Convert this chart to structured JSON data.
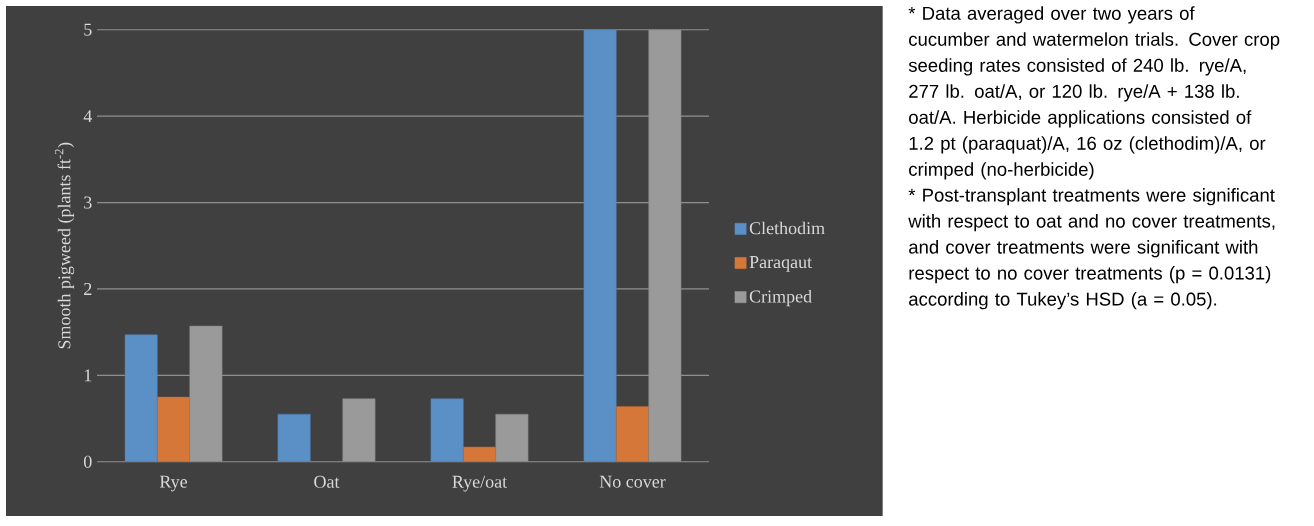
{
  "chart_data": {
    "type": "bar",
    "ylabel": "Smooth pigweed (plants ft$^{-2}$)",
    "categories": [
      "Rye",
      "Oat",
      "Rye/oat",
      "No cover"
    ],
    "series": [
      {
        "name": "Clethodim",
        "color": "#5b90c6",
        "values": [
          1.47,
          0.55,
          0.73,
          5.0
        ]
      },
      {
        "name": "Paraqaut",
        "color": "#d6773a",
        "values": [
          0.75,
          null,
          0.17,
          0.64
        ]
      },
      {
        "name": "Crimped",
        "color": "#9a9a9a",
        "values": [
          1.57,
          0.73,
          0.55,
          5.0
        ]
      }
    ],
    "ylim": [
      0,
      5
    ],
    "yticks": [
      0,
      1,
      2,
      3,
      4,
      5
    ],
    "grid": "y",
    "legend": "right",
    "annotations": [
      "* Data averaged over two years of cucumber and watermelon trials. Cover crop seeding rates consisted of 240 lb. rye/A, 277 lb. oat/A, or 120 lb. rye/A + 138 lb. oat/A. Herbicide applications consisted of 1.2 pt (paraquat)/A, 16 oz (clethodim)/A, or crimped (no-herbicide)",
      "* Post-transplant treatments were significant with respect to oat and no cover treatments, and cover treatments were significant with respect to no cover treatments (p = 0.0131) according to Tukey’s HSD (a = 0.05)."
    ]
  }
}
